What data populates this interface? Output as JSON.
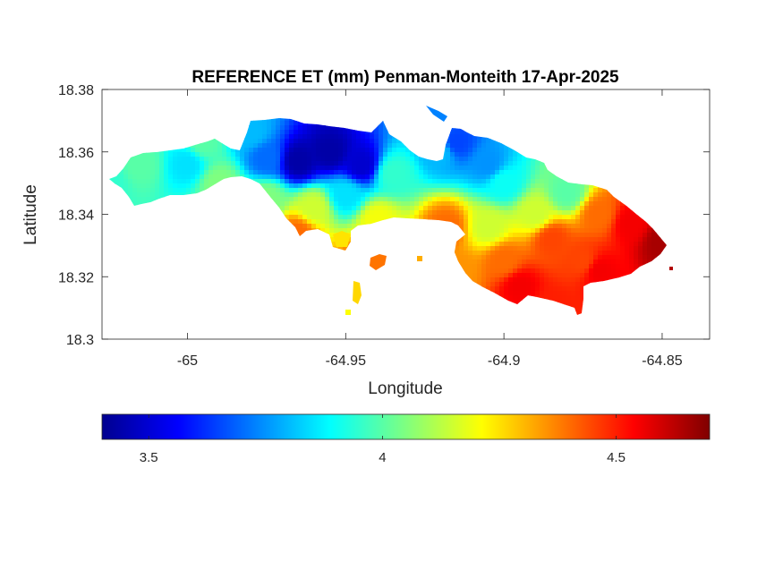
{
  "chart_data": {
    "type": "heatmap",
    "title": "REFERENCE ET (mm) Penman-Monteith 17-Apr-2025",
    "xlabel": "Longitude",
    "ylabel": "Latitude",
    "xlim": [
      -65.027,
      -64.835
    ],
    "ylim": [
      18.3,
      18.38
    ],
    "xticks": [
      -65,
      -64.95,
      -64.9,
      -64.85
    ],
    "xtick_labels": [
      "-65",
      "-64.95",
      "-64.9",
      "-64.85"
    ],
    "yticks": [
      18.3,
      18.32,
      18.34,
      18.36,
      18.38
    ],
    "ytick_labels": [
      "18.3",
      "18.32",
      "18.34",
      "18.36",
      "18.38"
    ],
    "grid": false,
    "colormap": "jet",
    "colorbar": {
      "orientation": "horizontal",
      "placement": "below",
      "range": [
        3.4,
        4.7
      ],
      "ticks": [
        3.5,
        4,
        4.5
      ],
      "tick_labels": [
        "3.5",
        "4",
        "4.5"
      ]
    },
    "field_notes": "Estimated reference evapotranspiration (mm) over the island land area; low values (~3.5) in the north-central hills near -64.955, 18.357; high values (~4.6) at the eastern tip near -64.85, 18.33.",
    "anchors": [
      {
        "lon": -65.025,
        "lat": 18.351,
        "value": 3.95
      },
      {
        "lon": -65.015,
        "lat": 18.356,
        "value": 4.0
      },
      {
        "lon": -65.0,
        "lat": 18.356,
        "value": 3.85
      },
      {
        "lon": -64.995,
        "lat": 18.363,
        "value": 4.0
      },
      {
        "lon": -64.99,
        "lat": 18.35,
        "value": 4.05
      },
      {
        "lon": -64.98,
        "lat": 18.366,
        "value": 3.8
      },
      {
        "lon": -64.975,
        "lat": 18.358,
        "value": 3.7
      },
      {
        "lon": -64.965,
        "lat": 18.357,
        "value": 3.45
      },
      {
        "lon": -64.955,
        "lat": 18.36,
        "value": 3.45
      },
      {
        "lon": -64.945,
        "lat": 18.356,
        "value": 3.5
      },
      {
        "lon": -64.95,
        "lat": 18.346,
        "value": 3.85
      },
      {
        "lon": -64.96,
        "lat": 18.342,
        "value": 4.15
      },
      {
        "lon": -64.975,
        "lat": 18.345,
        "value": 4.05
      },
      {
        "lon": -64.94,
        "lat": 18.338,
        "value": 4.2
      },
      {
        "lon": -64.935,
        "lat": 18.353,
        "value": 3.95
      },
      {
        "lon": -64.92,
        "lat": 18.36,
        "value": 3.8
      },
      {
        "lon": -64.915,
        "lat": 18.363,
        "value": 3.65
      },
      {
        "lon": -64.905,
        "lat": 18.356,
        "value": 3.75
      },
      {
        "lon": -64.9,
        "lat": 18.35,
        "value": 3.9
      },
      {
        "lon": -64.918,
        "lat": 18.336,
        "value": 4.4
      },
      {
        "lon": -64.905,
        "lat": 18.336,
        "value": 4.15
      },
      {
        "lon": -64.89,
        "lat": 18.34,
        "value": 4.15
      },
      {
        "lon": -64.885,
        "lat": 18.332,
        "value": 4.45
      },
      {
        "lon": -64.9,
        "lat": 18.325,
        "value": 4.4
      },
      {
        "lon": -64.915,
        "lat": 18.322,
        "value": 4.35
      },
      {
        "lon": -64.895,
        "lat": 18.317,
        "value": 4.55
      },
      {
        "lon": -64.885,
        "lat": 18.31,
        "value": 4.5
      },
      {
        "lon": -64.875,
        "lat": 18.325,
        "value": 4.45
      },
      {
        "lon": -64.87,
        "lat": 18.34,
        "value": 4.4
      },
      {
        "lon": -64.86,
        "lat": 18.337,
        "value": 4.55
      },
      {
        "lon": -64.85,
        "lat": 18.331,
        "value": 4.65
      },
      {
        "lon": -64.87,
        "lat": 18.322,
        "value": 4.55
      },
      {
        "lon": -64.88,
        "lat": 18.347,
        "value": 4.0
      },
      {
        "lon": -64.965,
        "lat": 18.334,
        "value": 4.4
      },
      {
        "lon": -64.945,
        "lat": 18.325,
        "value": 4.4
      },
      {
        "lon": -64.955,
        "lat": 18.315,
        "value": 4.2
      }
    ]
  }
}
